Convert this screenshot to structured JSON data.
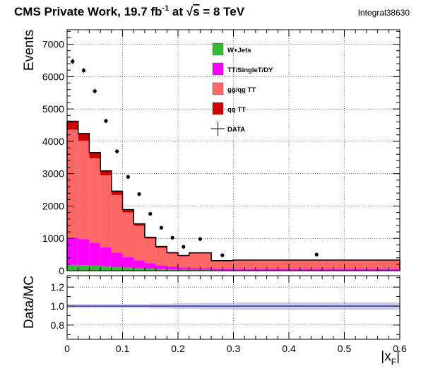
{
  "header": {
    "title_prefix": "CMS Private Work, 19.7 fb",
    "title_sup": "-1",
    "title_mid": " at  ",
    "sqrt_symbol": "√",
    "sqrt_s": "s",
    "title_suffix": " = 8 TeV",
    "integral_label": "Integral38630"
  },
  "chart_data": [
    {
      "type": "bar",
      "subtype": "stacked-histogram",
      "xlabel": "|x",
      "xlabel_sub": "F",
      "xlabel_end": "|",
      "ylabel": "Events",
      "xlim": [
        0,
        0.6
      ],
      "ylim": [
        0,
        7450
      ],
      "x_ticks": [
        0,
        0.1,
        0.2,
        0.3,
        0.4,
        0.5,
        0.6
      ],
      "x_tick_labels": [
        "0",
        "0.1",
        "0.2",
        "0.3",
        "0.4",
        "0.5",
        "0.6"
      ],
      "y_ticks": [
        0,
        1000,
        2000,
        3000,
        4000,
        5000,
        6000,
        7000
      ],
      "y_tick_labels": [
        "0",
        "1000",
        "2000",
        "3000",
        "4000",
        "5000",
        "6000",
        "7000"
      ],
      "grid": true,
      "legend_position": "top-center",
      "bin_edges": [
        0,
        0.02,
        0.04,
        0.06,
        0.08,
        0.1,
        0.12,
        0.14,
        0.16,
        0.18,
        0.2,
        0.22,
        0.26,
        0.3,
        0.6
      ],
      "series": [
        {
          "name": "W+Jets",
          "color": "#33bb33",
          "values": [
            180,
            170,
            155,
            140,
            120,
            100,
            80,
            65,
            50,
            40,
            30,
            25,
            12,
            8
          ]
        },
        {
          "name": "TT/SingleT/DY",
          "color": "#ff00ff",
          "values": [
            840,
            810,
            700,
            580,
            440,
            320,
            240,
            170,
            120,
            90,
            70,
            60,
            50,
            50
          ]
        },
        {
          "name": "gg/qg TT",
          "color": "#ff6666",
          "values": [
            3340,
            3040,
            2620,
            2230,
            1780,
            1380,
            1070,
            760,
            540,
            400,
            350,
            450,
            240,
            260
          ]
        },
        {
          "name": "qq TT",
          "color": "#cc0000",
          "values": [
            260,
            220,
            180,
            140,
            120,
            90,
            60,
            40,
            40,
            30,
            20,
            20,
            8,
            12
          ]
        }
      ],
      "data_points": {
        "name": "DATA",
        "x": [
          0.01,
          0.03,
          0.05,
          0.07,
          0.09,
          0.11,
          0.13,
          0.15,
          0.17,
          0.19,
          0.21,
          0.24,
          0.28,
          0.45
        ],
        "y": [
          6470,
          6190,
          5550,
          4630,
          3690,
          2900,
          2370,
          1760,
          1330,
          1020,
          740,
          980,
          480,
          500
        ],
        "err": [
          80,
          80,
          75,
          70,
          60,
          55,
          50,
          42,
          37,
          32,
          27,
          31,
          22,
          22
        ]
      }
    },
    {
      "type": "scatter",
      "subtype": "ratio",
      "ylabel": "Data/MC",
      "xlim": [
        0,
        0.6
      ],
      "ylim": [
        0.65,
        1.32
      ],
      "y_ticks": [
        0.8,
        1.0,
        1.2
      ],
      "y_tick_labels": [
        "0.8",
        "1.0",
        "1.2"
      ],
      "reference_line": 1.0,
      "grid": true,
      "ratio_x": [
        0.005,
        0.015,
        0.025,
        0.035,
        0.045,
        0.055,
        0.065,
        0.075,
        0.085,
        0.095,
        0.105,
        0.115,
        0.125,
        0.135,
        0.145,
        0.155,
        0.165,
        0.175,
        0.185,
        0.195,
        0.205,
        0.215,
        0.225,
        0.235,
        0.245,
        0.255,
        0.265,
        0.275,
        0.285,
        0.295,
        0.31,
        0.33,
        0.35,
        0.37,
        0.39,
        0.41,
        0.43,
        0.45,
        0.47,
        0.49,
        0.51,
        0.53,
        0.55,
        0.57,
        0.59
      ],
      "ratio_y": [
        1.0,
        1.0,
        1.0,
        1.0,
        1.0,
        1.0,
        1.0,
        1.0,
        1.0,
        1.0,
        1.0,
        1.0,
        1.0,
        1.0,
        1.0,
        1.0,
        1.0,
        1.0,
        1.0,
        1.0,
        1.0,
        1.0,
        1.0,
        1.0,
        1.0,
        1.0,
        1.0,
        1.0,
        1.0,
        1.0,
        1.0,
        1.0,
        1.0,
        1.0,
        1.0,
        1.0,
        1.0,
        1.0,
        1.0,
        1.0,
        1.0,
        1.0,
        1.0,
        1.0,
        1.0
      ],
      "ratio_err": [
        0.02,
        0.02,
        0.02,
        0.02,
        0.02,
        0.02,
        0.02,
        0.02,
        0.02,
        0.02,
        0.02,
        0.02,
        0.02,
        0.02,
        0.02,
        0.025,
        0.025,
        0.025,
        0.025,
        0.03,
        0.03,
        0.03,
        0.03,
        0.03,
        0.035,
        0.035,
        0.035,
        0.035,
        0.035,
        0.035,
        0.04,
        0.04,
        0.04,
        0.04,
        0.04,
        0.04,
        0.04,
        0.04,
        0.04,
        0.04,
        0.04,
        0.04,
        0.04,
        0.04,
        0.04
      ]
    }
  ],
  "colors": {
    "data_marker": "#000000",
    "ratio_marker": "#0000aa",
    "ratio_band": "#a0a0d8"
  }
}
